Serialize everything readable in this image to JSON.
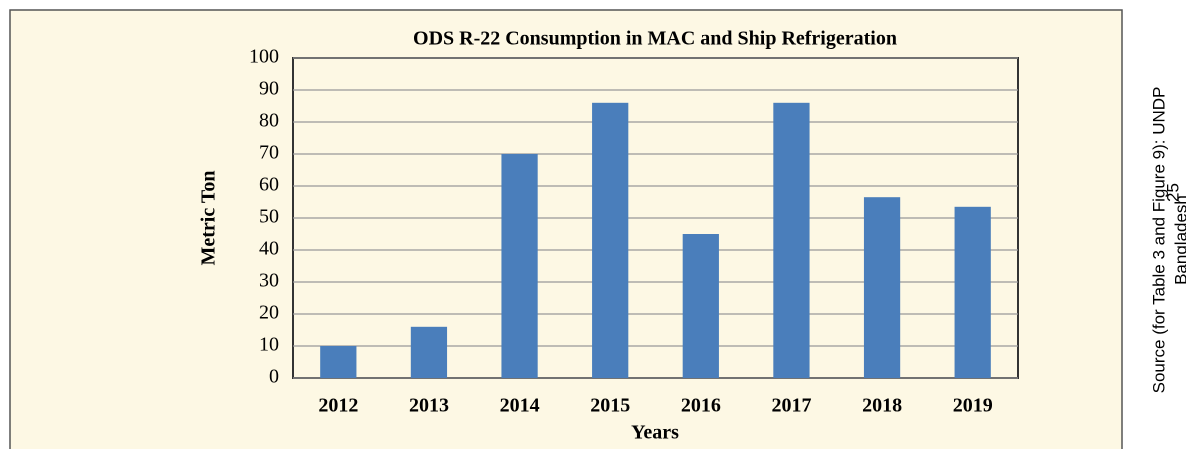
{
  "chart_data": {
    "type": "bar",
    "title": "ODS R-22 Consumption in MAC and Ship Refrigeration",
    "x_label": "Years",
    "y_label": "Metric Ton",
    "categories": [
      "2012",
      "2013",
      "2014",
      "2015",
      "2016",
      "2017",
      "2018",
      "2019"
    ],
    "values": [
      10,
      16,
      70,
      86,
      45,
      86,
      56.5,
      53.5
    ],
    "color": "#4a7ebb",
    "ylim": [
      0,
      100
    ],
    "yticks": [
      0,
      10,
      20,
      30,
      40,
      50,
      60,
      70,
      80,
      90,
      100
    ],
    "grid": true,
    "source": [
      "Source (for Table 3 and Figure 9): UNDP",
      "Bangladesh"
    ],
    "source_superscript": "25"
  }
}
